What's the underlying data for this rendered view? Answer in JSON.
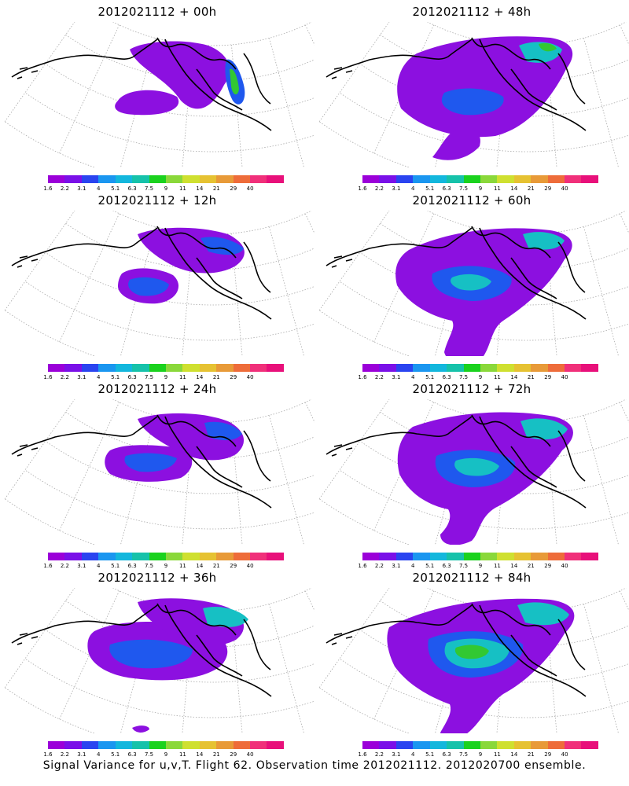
{
  "panels": [
    {
      "title": "2012021112 + 00h"
    },
    {
      "title": "2012021112 + 48h"
    },
    {
      "title": "2012021112 + 12h"
    },
    {
      "title": "2012021112 + 60h"
    },
    {
      "title": "2012021112 + 24h"
    },
    {
      "title": "2012021112 + 72h"
    },
    {
      "title": "2012021112 + 36h"
    },
    {
      "title": "2012021112 + 84h"
    }
  ],
  "colorbar": {
    "labels": [
      "1.6",
      "2.2",
      "3.1",
      "4",
      "5.1",
      "6.3",
      "7.5",
      "9",
      "11",
      "14",
      "21",
      "29",
      "40"
    ],
    "colors": [
      "#9b00d9",
      "#7a10e8",
      "#2a44f0",
      "#1a96f0",
      "#13b7dd",
      "#16c2aa",
      "#1ad21e",
      "#8ad83a",
      "#cfe030",
      "#e6c232",
      "#e89a38",
      "#ee6c3a",
      "#f0307a",
      "#e8107a"
    ]
  },
  "maps": {
    "grid_color": "#aaaaaa",
    "coast_color": "#000000",
    "shading_levels": {
      "low": "#8c10e0",
      "mid": "#1f58ee",
      "high": "#16c0c4",
      "peak": "#32c832"
    }
  },
  "caption": "Signal Variance for u,v,T. Flight 62. Observation time 2012021112. 2012020700 ensemble."
}
